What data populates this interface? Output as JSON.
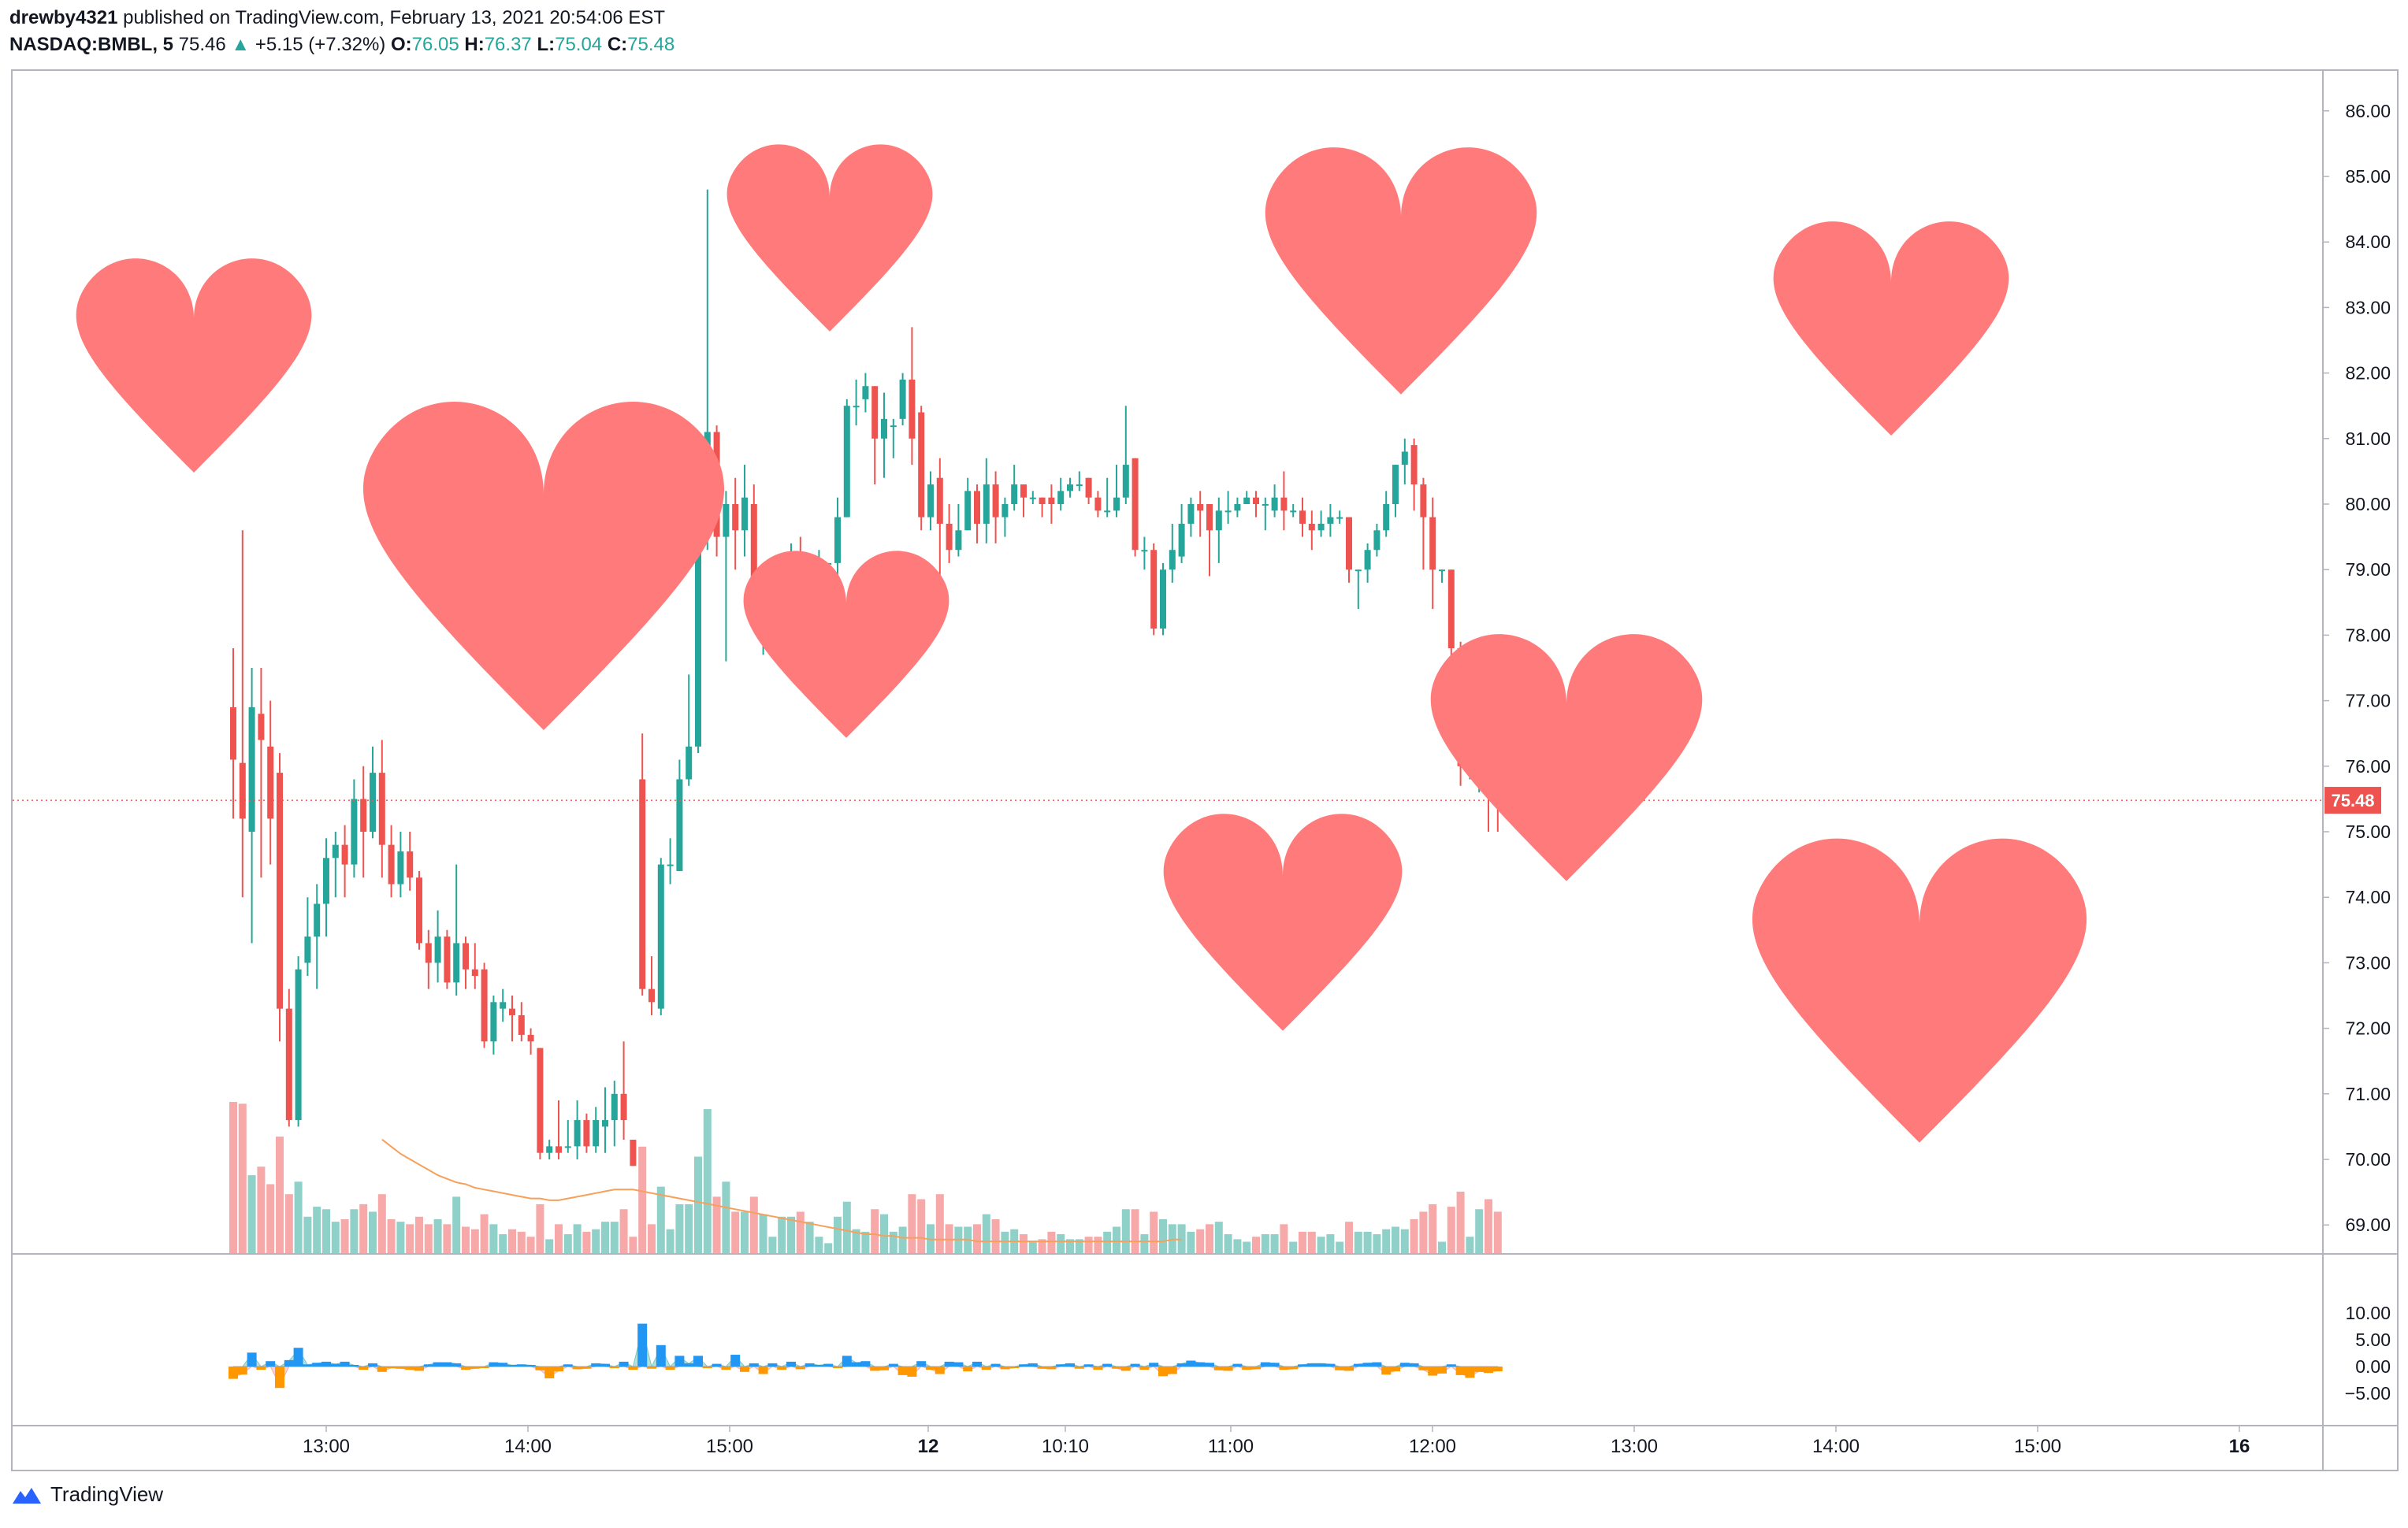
{
  "header": {
    "author": "drewby4321",
    "published_text": " published on TradingView.com, February 13, 2021 20:54:06 EST",
    "symbol": "NASDAQ:BMBL, 5",
    "last": "75.46",
    "arrow": "▲",
    "change": "+5.15 (+7.32%)",
    "o_label": "O:",
    "o_value": "76.05",
    "h_label": "H:",
    "h_value": "76.37",
    "l_label": "L:",
    "l_value": "75.04",
    "c_label": "C:",
    "c_value": "75.48"
  },
  "footer": {
    "brand": "TradingView"
  },
  "colors": {
    "up": "#26a69a",
    "down": "#ef5350",
    "up_volume": "#8fd0c8",
    "down_volume": "#f6a9a8",
    "ma_line": "#f7a05a",
    "heart": "#ff7b7b",
    "osc_up": "#2196f3",
    "osc_down": "#ff9800",
    "price_line": "#ef5350"
  },
  "chart_data": {
    "type": "candlestick",
    "symbol": "NASDAQ:BMBL",
    "interval": "5",
    "last_price_label": "75.48",
    "y_ticks": [
      "86.00",
      "85.00",
      "84.00",
      "83.00",
      "82.00",
      "81.00",
      "80.00",
      "79.00",
      "78.00",
      "77.00",
      "76.00",
      "75.00",
      "74.00",
      "73.00",
      "72.00",
      "71.00",
      "70.00",
      "69.00"
    ],
    "osc_ticks": [
      "10.00",
      "5.00",
      "0.00",
      "−5.00"
    ],
    "x_ticks": [
      "13:00",
      "14:00",
      "15:00",
      "12",
      "10:10",
      "11:00",
      "12:00",
      "13:00",
      "14:00",
      "15:00",
      "16"
    ],
    "ylim": [
      68.7,
      86.4
    ],
    "candles": [
      [
        76.9,
        76.1,
        77.8,
        75.2
      ],
      [
        76.05,
        75.2,
        79.6,
        74.0
      ],
      [
        75.0,
        76.9,
        77.5,
        73.3
      ],
      [
        76.8,
        76.4,
        77.5,
        74.3
      ],
      [
        76.3,
        75.2,
        77.0,
        74.5
      ],
      [
        75.9,
        72.3,
        76.2,
        71.8
      ],
      [
        72.3,
        70.6,
        72.6,
        70.5
      ],
      [
        70.6,
        72.9,
        73.1,
        70.5
      ],
      [
        73.0,
        73.4,
        74.0,
        72.8
      ],
      [
        73.4,
        73.9,
        74.2,
        72.6
      ],
      [
        73.9,
        74.6,
        74.9,
        73.4
      ],
      [
        74.6,
        74.8,
        75.0,
        74.0
      ],
      [
        74.8,
        74.5,
        75.1,
        74.0
      ],
      [
        74.5,
        75.5,
        75.8,
        74.3
      ],
      [
        75.5,
        75.0,
        76.0,
        74.3
      ],
      [
        75.0,
        75.9,
        76.3,
        74.9
      ],
      [
        75.9,
        74.8,
        76.4,
        74.3
      ],
      [
        74.8,
        74.2,
        75.1,
        74.0
      ],
      [
        74.2,
        74.7,
        75.0,
        74.0
      ],
      [
        74.7,
        74.3,
        75.0,
        74.1
      ],
      [
        74.3,
        73.3,
        74.4,
        73.2
      ],
      [
        73.3,
        73.0,
        73.5,
        72.6
      ],
      [
        73.0,
        73.4,
        73.8,
        72.7
      ],
      [
        73.4,
        72.7,
        73.5,
        72.6
      ],
      [
        72.7,
        73.3,
        74.5,
        72.5
      ],
      [
        73.3,
        72.9,
        73.4,
        72.6
      ],
      [
        72.9,
        72.8,
        73.3,
        72.6
      ],
      [
        72.9,
        71.8,
        73.0,
        71.7
      ],
      [
        71.8,
        72.4,
        72.5,
        71.6
      ],
      [
        72.3,
        72.4,
        72.6,
        72.1
      ],
      [
        72.3,
        72.2,
        72.5,
        71.8
      ],
      [
        72.2,
        71.9,
        72.4,
        71.8
      ],
      [
        71.9,
        71.8,
        72.0,
        71.6
      ],
      [
        71.7,
        70.1,
        71.7,
        70.0
      ],
      [
        70.1,
        70.2,
        70.3,
        70.0
      ],
      [
        70.2,
        70.1,
        70.9,
        70.0
      ],
      [
        70.2,
        70.2,
        70.6,
        70.1
      ],
      [
        70.2,
        70.6,
        70.9,
        70.0
      ],
      [
        70.6,
        70.2,
        70.7,
        70.1
      ],
      [
        70.2,
        70.6,
        70.8,
        70.1
      ],
      [
        70.5,
        70.6,
        71.1,
        70.1
      ],
      [
        70.6,
        71.0,
        71.2,
        70.2
      ],
      [
        71.0,
        70.6,
        71.8,
        70.3
      ],
      [
        70.3,
        69.9,
        70.3,
        69.9
      ],
      [
        75.8,
        72.6,
        76.5,
        72.5
      ],
      [
        72.6,
        72.4,
        73.1,
        72.2
      ],
      [
        72.3,
        74.5,
        74.6,
        72.2
      ],
      [
        74.5,
        74.5,
        74.9,
        74.2
      ],
      [
        74.4,
        75.8,
        76.1,
        74.4
      ],
      [
        75.8,
        76.3,
        77.4,
        75.7
      ],
      [
        76.3,
        79.5,
        79.8,
        76.2
      ],
      [
        79.5,
        81.1,
        84.8,
        79.3
      ],
      [
        81.1,
        79.5,
        81.2,
        79.2
      ],
      [
        79.5,
        80.0,
        80.2,
        77.6
      ],
      [
        80.0,
        79.6,
        80.4,
        79.0
      ],
      [
        79.6,
        80.1,
        80.6,
        79.2
      ],
      [
        80.0,
        78.5,
        80.3,
        78.3
      ],
      [
        78.5,
        78.5,
        79.0,
        77.7
      ],
      [
        78.5,
        78.5,
        78.6,
        78.2
      ],
      [
        78.6,
        78.9,
        79.2,
        78.0
      ],
      [
        78.8,
        79.1,
        79.4,
        78.2
      ],
      [
        78.9,
        78.3,
        79.5,
        78.1
      ],
      [
        78.3,
        79.0,
        79.2,
        78.2
      ],
      [
        79.0,
        79.1,
        79.3,
        78.9
      ],
      [
        79.1,
        79.1,
        79.1,
        79.0
      ],
      [
        79.1,
        79.8,
        80.1,
        78.9
      ],
      [
        79.8,
        81.5,
        81.6,
        79.8
      ],
      [
        81.5,
        81.5,
        81.9,
        81.2
      ],
      [
        81.6,
        81.8,
        82.0,
        81.4
      ],
      [
        81.8,
        81.0,
        81.8,
        80.3
      ],
      [
        81.0,
        81.3,
        81.7,
        80.4
      ],
      [
        81.2,
        81.2,
        81.3,
        80.7
      ],
      [
        81.3,
        81.9,
        82.0,
        81.2
      ],
      [
        81.9,
        81.0,
        82.7,
        80.6
      ],
      [
        81.4,
        79.8,
        81.5,
        79.6
      ],
      [
        79.8,
        80.3,
        80.5,
        79.6
      ],
      [
        80.4,
        79.7,
        80.7,
        78.6
      ],
      [
        79.7,
        79.3,
        80.0,
        79.1
      ],
      [
        79.3,
        79.6,
        80.0,
        79.2
      ],
      [
        79.6,
        80.2,
        80.4,
        79.6
      ],
      [
        80.2,
        79.7,
        80.3,
        79.4
      ],
      [
        79.7,
        80.3,
        80.7,
        79.4
      ],
      [
        80.3,
        79.8,
        80.5,
        79.4
      ],
      [
        79.8,
        80.0,
        80.1,
        79.5
      ],
      [
        80.0,
        80.3,
        80.6,
        79.9
      ],
      [
        80.3,
        80.1,
        80.3,
        79.8
      ],
      [
        80.1,
        80.1,
        80.2,
        80.0
      ],
      [
        80.1,
        80.0,
        80.1,
        79.8
      ],
      [
        80.1,
        80.0,
        80.3,
        79.7
      ],
      [
        80.0,
        80.2,
        80.4,
        79.9
      ],
      [
        80.2,
        80.3,
        80.4,
        80.1
      ],
      [
        80.3,
        80.3,
        80.5,
        80.2
      ],
      [
        80.4,
        80.1,
        80.4,
        80.0
      ],
      [
        80.1,
        79.9,
        80.2,
        79.8
      ],
      [
        79.9,
        79.9,
        80.4,
        79.8
      ],
      [
        79.9,
        80.1,
        80.6,
        79.8
      ],
      [
        80.1,
        80.6,
        81.5,
        80.0
      ],
      [
        80.7,
        79.3,
        80.7,
        79.2
      ],
      [
        79.3,
        79.3,
        79.5,
        79.0
      ],
      [
        79.3,
        78.1,
        79.4,
        78.0
      ],
      [
        78.1,
        79.0,
        79.1,
        78.0
      ],
      [
        79.0,
        79.3,
        79.7,
        78.8
      ],
      [
        79.2,
        79.7,
        80.0,
        79.1
      ],
      [
        79.7,
        80.0,
        80.1,
        79.5
      ],
      [
        80.0,
        79.9,
        80.2,
        79.5
      ],
      [
        80.0,
        79.6,
        79.8,
        78.9
      ],
      [
        79.6,
        79.9,
        80.1,
        79.1
      ],
      [
        79.9,
        79.9,
        80.2,
        79.7
      ],
      [
        79.9,
        80.0,
        80.1,
        79.8
      ],
      [
        80.0,
        80.1,
        80.2,
        80.0
      ],
      [
        80.1,
        80.0,
        80.2,
        79.8
      ],
      [
        80.0,
        80.0,
        80.1,
        79.6
      ],
      [
        79.9,
        80.1,
        80.3,
        79.8
      ],
      [
        80.1,
        79.9,
        80.5,
        79.6
      ],
      [
        79.9,
        79.9,
        80.0,
        79.8
      ],
      [
        79.9,
        79.7,
        80.1,
        79.5
      ],
      [
        79.7,
        79.6,
        79.9,
        79.3
      ],
      [
        79.6,
        79.7,
        79.9,
        79.5
      ],
      [
        79.7,
        79.8,
        80.0,
        79.5
      ],
      [
        79.8,
        79.8,
        79.9,
        79.7
      ],
      [
        79.8,
        79.0,
        79.8,
        78.8
      ],
      [
        79.0,
        79.0,
        79.0,
        78.4
      ],
      [
        79.0,
        79.3,
        79.4,
        78.8
      ],
      [
        79.3,
        79.6,
        79.7,
        79.2
      ],
      [
        79.6,
        80.0,
        80.2,
        79.5
      ],
      [
        80.0,
        80.6,
        80.6,
        79.8
      ],
      [
        80.6,
        80.8,
        81.0,
        80.3
      ],
      [
        80.9,
        80.3,
        81.0,
        79.9
      ],
      [
        80.3,
        79.8,
        80.4,
        79.0
      ],
      [
        79.8,
        79.0,
        80.1,
        78.4
      ],
      [
        79.0,
        79.0,
        79.0,
        78.8
      ],
      [
        79.0,
        77.8,
        79.0,
        77.4
      ],
      [
        77.8,
        76.0,
        77.9,
        75.7
      ],
      [
        76.0,
        76.0,
        76.2,
        75.8
      ],
      [
        76.0,
        76.8,
        77.1,
        75.6
      ],
      [
        76.8,
        76.0,
        76.9,
        75.0
      ],
      [
        76.0,
        75.5,
        76.4,
        75.0
      ]
    ],
    "volume_average": [
      6.4,
      6.0,
      5.6,
      5.3,
      5.0,
      4.7,
      4.4,
      4.2,
      4.0,
      3.9,
      3.7,
      3.6,
      3.5,
      3.4,
      3.3,
      3.2,
      3.1,
      3.1,
      3.0,
      3.0,
      3.1,
      3.2,
      3.3,
      3.4,
      3.5,
      3.6,
      3.6,
      3.6,
      3.5,
      3.4,
      3.3,
      3.2,
      3.1,
      3.0,
      2.9,
      2.8,
      2.7,
      2.6,
      2.5,
      2.4,
      2.3,
      2.2,
      2.1,
      2.0,
      1.9,
      1.8,
      1.7,
      1.6,
      1.5,
      1.4,
      1.3,
      1.2,
      1.1,
      1.1,
      1.0,
      1.0,
      0.9,
      0.9,
      0.9,
      0.8,
      0.8,
      0.8,
      0.8,
      0.8,
      0.7,
      0.7,
      0.7,
      0.7,
      0.7,
      0.7,
      0.7,
      0.7,
      0.7,
      0.7,
      0.7,
      0.7,
      0.7,
      0.7,
      0.7,
      0.7,
      0.7,
      0.7,
      0.7,
      0.7,
      0.7,
      0.8,
      0.8
    ],
    "oscillator": [
      -2.3,
      -1.5,
      2.6,
      -0.6,
      1.0,
      -4.0,
      1.2,
      3.5,
      0.4,
      0.7,
      0.9,
      0.5,
      0.9,
      0.3,
      -0.6,
      0.6,
      -1.0,
      -0.3,
      -0.4,
      -0.6,
      -0.8,
      0.4,
      0.8,
      0.8,
      0.6,
      -0.6,
      -0.4,
      -0.2,
      0.8,
      0.7,
      0.3,
      0.4,
      0.3,
      -0.7,
      -2.2,
      -0.9,
      0.4,
      -0.5,
      -0.4,
      0.6,
      0.5,
      -0.3,
      0.9,
      -0.6,
      8.0,
      -0.4,
      4.0,
      -0.6,
      2.0,
      0.6,
      2.0,
      -0.3,
      0.5,
      -0.6,
      2.2,
      -1.0,
      0.6,
      -1.4,
      0.6,
      -0.6,
      0.9,
      -0.5,
      0.6,
      0.3,
      0.5,
      -0.3,
      2.0,
      0.8,
      1.0,
      -0.8,
      -0.7,
      0.5,
      -1.6,
      -1.9,
      1.0,
      -0.6,
      -1.4,
      0.9,
      0.8,
      -0.9,
      0.9,
      -0.6,
      0.5,
      -0.5,
      -0.3,
      0.4,
      0.6,
      -0.4,
      -0.5,
      0.4,
      0.6,
      -0.4,
      0.4,
      -0.6,
      0.5,
      -0.4,
      -0.8,
      0.5,
      -0.6,
      0.7,
      -1.8,
      -1.4,
      0.6,
      1.1,
      0.8,
      0.7,
      -0.7,
      -0.8,
      0.5,
      -0.6,
      -0.5,
      0.8,
      0.7,
      -0.6,
      -0.5,
      0.4,
      0.6,
      0.6,
      0.5,
      -0.7,
      -0.8,
      0.5,
      0.7,
      0.8,
      -1.5,
      -0.9,
      0.7,
      0.6,
      -0.7,
      -1.7,
      -1.3,
      0.4,
      -1.6,
      -2.1,
      -1.0,
      -1.2,
      -0.9
    ]
  }
}
